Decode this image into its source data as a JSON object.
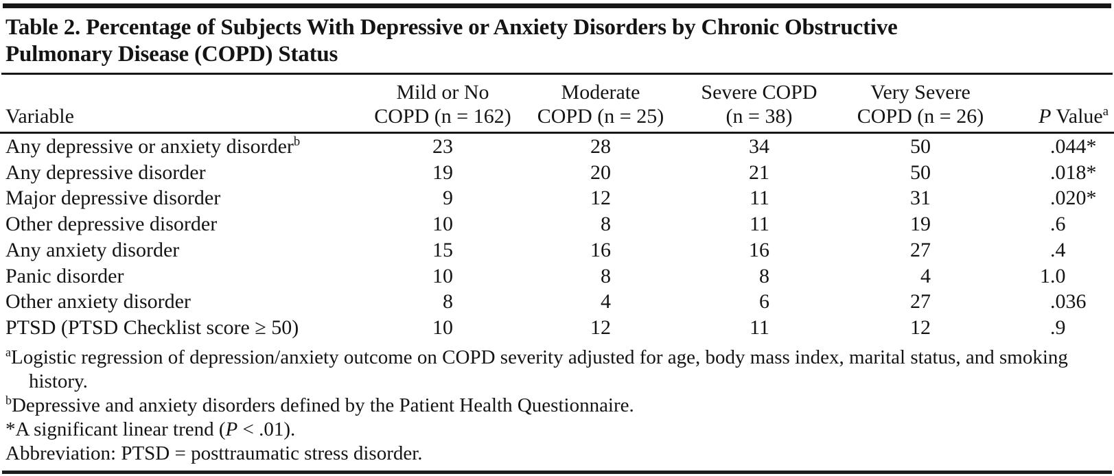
{
  "table": {
    "title_line1": "Table 2. Percentage of Subjects With Depressive or Anxiety Disorders by Chronic Obstructive",
    "title_line2": "Pulmonary Disease (COPD) Status",
    "columns": {
      "variable": "Variable",
      "groups": [
        {
          "line1": "Mild or No",
          "line2": "COPD (n = 162)"
        },
        {
          "line1": "Moderate",
          "line2": "COPD (n = 25)"
        },
        {
          "line1": "Severe COPD",
          "line2": "(n = 38)"
        },
        {
          "line1": "Very Severe",
          "line2": "COPD (n = 26)"
        }
      ],
      "p_value": {
        "italic": "P",
        "rest": " Value",
        "sup": "a"
      }
    },
    "rows": [
      {
        "variable": "Any depressive or anxiety disorder",
        "sup": "b",
        "values": [
          23,
          28,
          34,
          50
        ],
        "p": ".044*"
      },
      {
        "variable": "Any depressive disorder",
        "sup": "",
        "values": [
          19,
          20,
          21,
          50
        ],
        "p": ".018*"
      },
      {
        "variable": "Major depressive disorder",
        "sup": "",
        "values": [
          9,
          12,
          11,
          31
        ],
        "p": ".020*"
      },
      {
        "variable": "Other depressive disorder",
        "sup": "",
        "values": [
          10,
          8,
          11,
          19
        ],
        "p": ".6"
      },
      {
        "variable": "Any anxiety disorder",
        "sup": "",
        "values": [
          15,
          16,
          16,
          27
        ],
        "p": ".4"
      },
      {
        "variable": "Panic disorder",
        "sup": "",
        "values": [
          10,
          8,
          8,
          4
        ],
        "p": "1.0"
      },
      {
        "variable": "Other anxiety disorder",
        "sup": "",
        "values": [
          8,
          4,
          6,
          27
        ],
        "p": ".036"
      },
      {
        "variable": "PTSD (PTSD Checklist score ≥ 50)",
        "sup": "",
        "values": [
          10,
          12,
          11,
          12
        ],
        "p": ".9"
      }
    ],
    "footnotes": [
      {
        "marker": "a",
        "marker_style": "sup",
        "parts": [
          {
            "text": "Logistic regression of depression/anxiety outcome on COPD severity adjusted for age, body mass index, marital status, and smoking history."
          }
        ]
      },
      {
        "marker": "b",
        "marker_style": "sup",
        "parts": [
          {
            "text": "Depressive and anxiety disorders defined by the Patient Health Questionnaire."
          }
        ]
      },
      {
        "marker": "*",
        "marker_style": "inline",
        "parts": [
          {
            "text": "A significant linear trend ("
          },
          {
            "text": "P",
            "italic": true
          },
          {
            "text": " < .01)."
          }
        ]
      },
      {
        "marker": "",
        "marker_style": "none",
        "parts": [
          {
            "text": "Abbreviation: PTSD = posttraumatic stress disorder."
          }
        ]
      }
    ],
    "text_color": "#141414",
    "rule_color": "#171717"
  }
}
